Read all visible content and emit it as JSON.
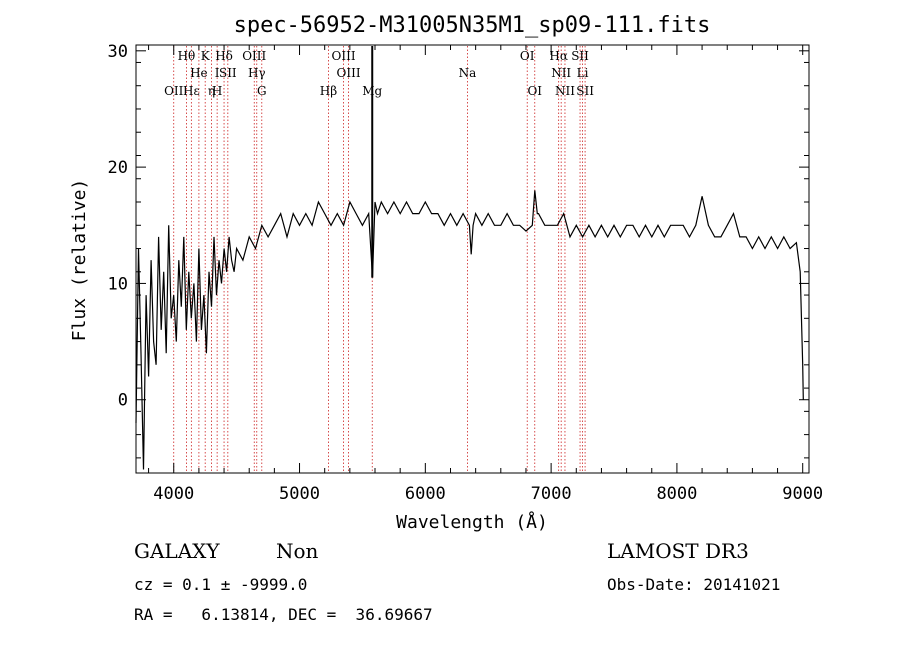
{
  "chart_data": {
    "type": "line",
    "title": "spec-56952-M31005N35M1_sp09-111.fits",
    "xlabel": "Wavelength (Å)",
    "ylabel": "Flux (relative)",
    "xlim": [
      3700,
      9050
    ],
    "ylim": [
      -6.3,
      30.5
    ],
    "xticks": [
      4000,
      5000,
      6000,
      7000,
      8000,
      9000
    ],
    "yticks": [
      0,
      10,
      20,
      30
    ],
    "grid": false,
    "series": [
      {
        "name": "spectrum",
        "x": [
          3700,
          3720,
          3740,
          3760,
          3780,
          3800,
          3820,
          3840,
          3860,
          3880,
          3900,
          3920,
          3940,
          3960,
          3980,
          4000,
          4020,
          4040,
          4060,
          4080,
          4100,
          4120,
          4140,
          4160,
          4180,
          4200,
          4220,
          4240,
          4260,
          4280,
          4300,
          4320,
          4340,
          4360,
          4380,
          4400,
          4420,
          4440,
          4460,
          4480,
          4500,
          4550,
          4600,
          4650,
          4700,
          4750,
          4800,
          4850,
          4900,
          4950,
          5000,
          5050,
          5100,
          5150,
          5200,
          5250,
          5300,
          5350,
          5400,
          5450,
          5500,
          5550,
          5580,
          5600,
          5620,
          5650,
          5700,
          5750,
          5800,
          5850,
          5900,
          5950,
          6000,
          6050,
          6100,
          6150,
          6200,
          6250,
          6300,
          6350,
          6365,
          6380,
          6400,
          6450,
          6500,
          6550,
          6600,
          6650,
          6700,
          6750,
          6800,
          6850,
          6870,
          6890,
          6900,
          6950,
          7000,
          7050,
          7100,
          7150,
          7200,
          7250,
          7300,
          7350,
          7400,
          7450,
          7500,
          7550,
          7600,
          7650,
          7700,
          7750,
          7800,
          7850,
          7900,
          7950,
          8000,
          8050,
          8100,
          8150,
          8200,
          8250,
          8300,
          8350,
          8400,
          8450,
          8500,
          8550,
          8600,
          8650,
          8700,
          8750,
          8800,
          8850,
          8900,
          8950,
          8980,
          9000,
          9005
        ],
        "values": [
          -2,
          13,
          4,
          -6,
          9,
          2,
          12,
          5,
          3,
          14,
          6,
          11,
          4,
          15,
          7,
          9,
          5,
          12,
          8,
          14,
          6,
          11,
          7,
          10,
          5,
          13,
          6,
          9,
          4,
          11,
          8,
          14,
          9,
          12,
          10,
          13,
          11,
          14,
          12,
          11,
          13,
          12,
          14,
          13,
          15,
          14,
          15,
          16,
          14,
          16,
          15,
          16,
          15,
          17,
          16,
          15,
          16,
          15,
          17,
          16,
          15,
          16,
          10.5,
          17,
          16,
          17,
          16,
          17,
          16,
          17,
          16,
          16,
          17,
          16,
          16,
          15,
          16,
          15,
          16,
          15,
          12.5,
          15,
          16,
          15,
          16,
          15,
          15,
          16,
          15,
          15,
          14.5,
          15,
          18,
          16,
          16,
          15,
          15,
          15,
          16,
          14,
          15,
          14,
          15,
          14,
          15,
          14,
          15,
          14,
          15,
          15,
          14,
          15,
          14,
          15,
          14,
          15,
          15,
          15,
          14,
          15,
          17.5,
          15,
          14,
          14,
          15,
          16,
          14,
          14,
          13,
          14,
          13,
          14,
          13,
          14,
          13,
          13.5,
          11,
          3,
          0
        ]
      }
    ],
    "vlines": [
      {
        "x": 4000,
        "labels": [
          "OII"
        ],
        "label_rows": [
          3
        ]
      },
      {
        "x": 4101,
        "labels": [
          "Hθ"
        ],
        "label_rows": [
          1
        ]
      },
      {
        "x": 4140,
        "labels": [
          "Hε"
        ],
        "label_rows": [
          3
        ]
      },
      {
        "x": 4200,
        "labels": [
          "He"
        ],
        "label_rows": [
          2
        ]
      },
      {
        "x": 4250,
        "labels": [
          "K"
        ],
        "label_rows": [
          1
        ]
      },
      {
        "x": 4300,
        "labels": [
          "η"
        ],
        "label_rows": [
          3
        ]
      },
      {
        "x": 4345,
        "labels": [
          "I",
          "H"
        ],
        "label_rows": [
          2,
          3
        ]
      },
      {
        "x": 4400,
        "labels": [
          "Hδ"
        ],
        "label_rows": [
          1
        ]
      },
      {
        "x": 4430,
        "labels": [
          "SII"
        ],
        "label_rows": [
          2
        ]
      },
      {
        "x": 4640,
        "labels": [
          "OIII"
        ],
        "label_rows": [
          1
        ]
      },
      {
        "x": 4660,
        "labels": [
          "Hγ"
        ],
        "label_rows": [
          2
        ]
      },
      {
        "x": 4700,
        "labels": [
          "G"
        ],
        "label_rows": [
          3
        ]
      },
      {
        "x": 5230,
        "labels": [
          "Hβ"
        ],
        "label_rows": [
          3
        ]
      },
      {
        "x": 5350,
        "labels": [
          "OIII"
        ],
        "label_rows": [
          1
        ]
      },
      {
        "x": 5390,
        "labels": [
          "OIII"
        ],
        "label_rows": [
          2
        ]
      },
      {
        "x": 5578,
        "labels": [
          "Mg"
        ],
        "label_rows": [
          3
        ]
      },
      {
        "x": 6335,
        "labels": [
          "Na"
        ],
        "label_rows": [
          2
        ]
      },
      {
        "x": 6810,
        "labels": [
          "OI"
        ],
        "label_rows": [
          1
        ]
      },
      {
        "x": 6870,
        "labels": [
          "OI"
        ],
        "label_rows": [
          3
        ]
      },
      {
        "x": 7060,
        "labels": [
          "Hα"
        ],
        "label_rows": [
          1
        ]
      },
      {
        "x": 7080,
        "labels": [
          "NII"
        ],
        "label_rows": [
          2
        ]
      },
      {
        "x": 7110,
        "labels": [
          "NII"
        ],
        "label_rows": [
          3
        ]
      },
      {
        "x": 7230,
        "labels": [
          "SII"
        ],
        "label_rows": [
          1
        ]
      },
      {
        "x": 7250,
        "labels": [
          "Li"
        ],
        "label_rows": [
          2
        ]
      },
      {
        "x": 7270,
        "labels": [
          "SII"
        ],
        "label_rows": [
          3
        ]
      }
    ]
  },
  "info": {
    "classification": "GALAXY",
    "subclass": "Non",
    "survey": "LAMOST DR3",
    "cz_line": "cz = 0.1 ± -9999.0",
    "obs_date_line": "Obs-Date: 20141021",
    "coord_line": "RA =   6.13814, DEC =  36.69667"
  }
}
